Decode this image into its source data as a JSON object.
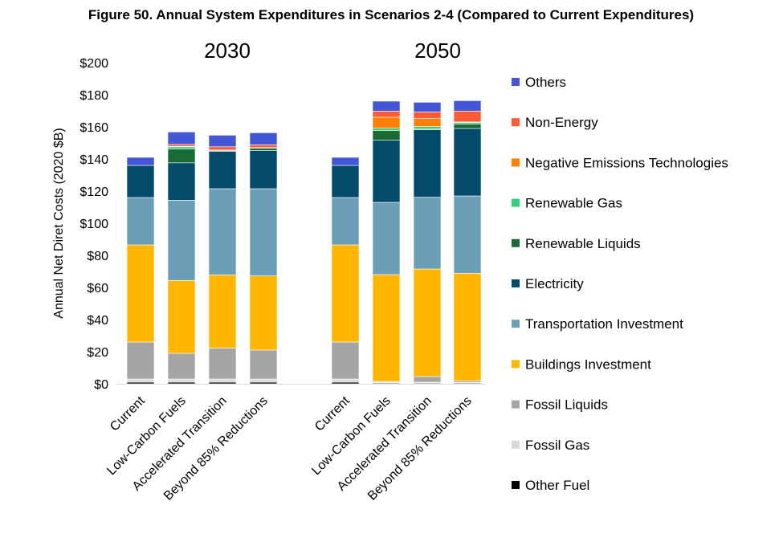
{
  "chart_data": {
    "type": "bar",
    "stacked": true,
    "title": "Figure 50. Annual System Expenditures in Scenarios 2-4 (Compared to Current Expenditures)",
    "xlabel": "",
    "ylabel": "Annual Net Diret Costs (2020 $B)",
    "ylim": [
      0,
      200
    ],
    "yticks": [
      "$0",
      "$20",
      "$40",
      "$60",
      "$80",
      "$100",
      "$120",
      "$140",
      "$160",
      "$180",
      "$200"
    ],
    "grid": false,
    "legend": "right",
    "groups": [
      {
        "label": "2030",
        "categories": [
          "Current",
          "Low-Carbon Fuels",
          "Accelerated Transition",
          "Beyond 85% Reductions"
        ]
      },
      {
        "label": "2050",
        "categories": [
          "Current",
          "Low-Carbon Fuels",
          "Accelerated Transition",
          "Beyond 85% Reductions"
        ]
      }
    ],
    "series": [
      {
        "name": "Other Fuel",
        "color": "#000000",
        "values": [
          [
            1,
            1,
            1,
            1
          ],
          [
            1,
            0.5,
            0.5,
            0.5
          ]
        ]
      },
      {
        "name": "Fossil Gas",
        "color": "#d9d9d9",
        "values": [
          [
            2,
            2,
            2,
            2
          ],
          [
            2,
            0.5,
            0.5,
            0.3
          ]
        ]
      },
      {
        "name": "Fossil Liquids",
        "color": "#a5a5a5",
        "values": [
          [
            23,
            16,
            19.3,
            18
          ],
          [
            23,
            0.5,
            3.5,
            1
          ]
        ]
      },
      {
        "name": "Buildings Investment",
        "color": "#ffb600",
        "values": [
          [
            60.5,
            45.3,
            45.5,
            46.2
          ],
          [
            60.5,
            66.5,
            67,
            67
          ]
        ]
      },
      {
        "name": "Transportation Investment",
        "color": "#6b9fb7",
        "values": [
          [
            29.5,
            50,
            53.7,
            54.3
          ],
          [
            29.5,
            45,
            44.7,
            48.2
          ]
        ]
      },
      {
        "name": "Electricity",
        "color": "#044a6b",
        "values": [
          [
            20,
            23.3,
            23.3,
            23.8
          ],
          [
            20,
            38.7,
            42.1,
            42
          ]
        ]
      },
      {
        "name": "Renewable Liquids",
        "color": "#186b34",
        "values": [
          [
            0,
            8.7,
            0.5,
            1.5
          ],
          [
            0,
            6.1,
            0.3,
            2.8
          ]
        ]
      },
      {
        "name": "Renewable Gas",
        "color": "#33d17a",
        "values": [
          [
            0,
            1.3,
            0.3,
            0.3
          ],
          [
            0,
            1.4,
            1.6,
            1
          ]
        ]
      },
      {
        "name": "Negative Emissions Technologies",
        "color": "#ff8000",
        "values": [
          [
            0,
            0.3,
            0,
            0
          ],
          [
            0,
            6.8,
            5,
            0.3
          ]
        ]
      },
      {
        "name": "Non-Energy",
        "color": "#ff5a36",
        "values": [
          [
            0,
            1.2,
            2,
            1.7
          ],
          [
            0,
            3.8,
            4.1,
            6.7
          ]
        ]
      },
      {
        "name": "Others",
        "color": "#4256d6",
        "values": [
          [
            5,
            7.7,
            7.2,
            7.5
          ],
          [
            5,
            6.2,
            6,
            6.5
          ]
        ]
      }
    ]
  }
}
